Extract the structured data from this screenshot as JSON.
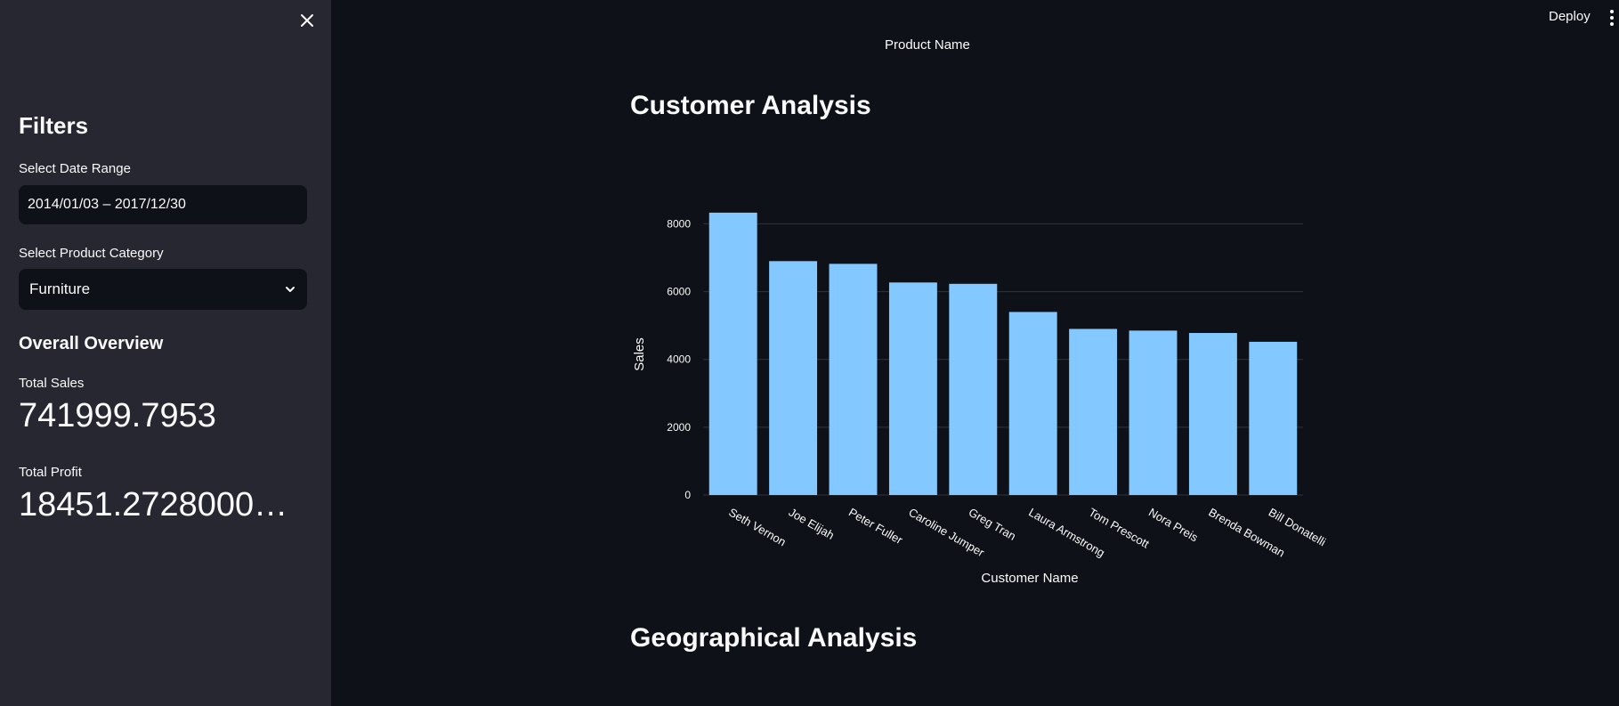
{
  "sidebar": {
    "title": "Filters",
    "date_label": "Select Date Range",
    "date_value": "2014/01/03 – 2017/12/30",
    "category_label": "Select Product Category",
    "category_value": "Furniture",
    "overview_title": "Overall Overview",
    "total_sales_label": "Total Sales",
    "total_sales_value": "741999.7953",
    "total_profit_label": "Total Profit",
    "total_profit_value": "18451.27280000…"
  },
  "header": {
    "deploy_label": "Deploy"
  },
  "main": {
    "top_chart_xlabel": "Product Name",
    "customer_title": "Customer Analysis",
    "geo_title": "Geographical Analysis"
  },
  "colors": {
    "bar": "#83c9ff",
    "background": "#0e1117",
    "sidebar": "#262730"
  },
  "chart_data": {
    "type": "bar",
    "categories": [
      "Seth Vernon",
      "Joe Elijah",
      "Peter Fuller",
      "Caroline Jumper",
      "Greg Tran",
      "Laura Armstrong",
      "Tom Prescott",
      "Nora Preis",
      "Brenda Bowman",
      "Bill Donatelli"
    ],
    "values": [
      8330,
      6900,
      6820,
      6270,
      6230,
      5400,
      4900,
      4850,
      4780,
      4520
    ],
    "xlabel": "Customer Name",
    "ylabel": "Sales",
    "yticks": [
      "0",
      "2000",
      "4000",
      "6000",
      "8000"
    ],
    "ylim": [
      0,
      8300
    ],
    "grid": true
  }
}
